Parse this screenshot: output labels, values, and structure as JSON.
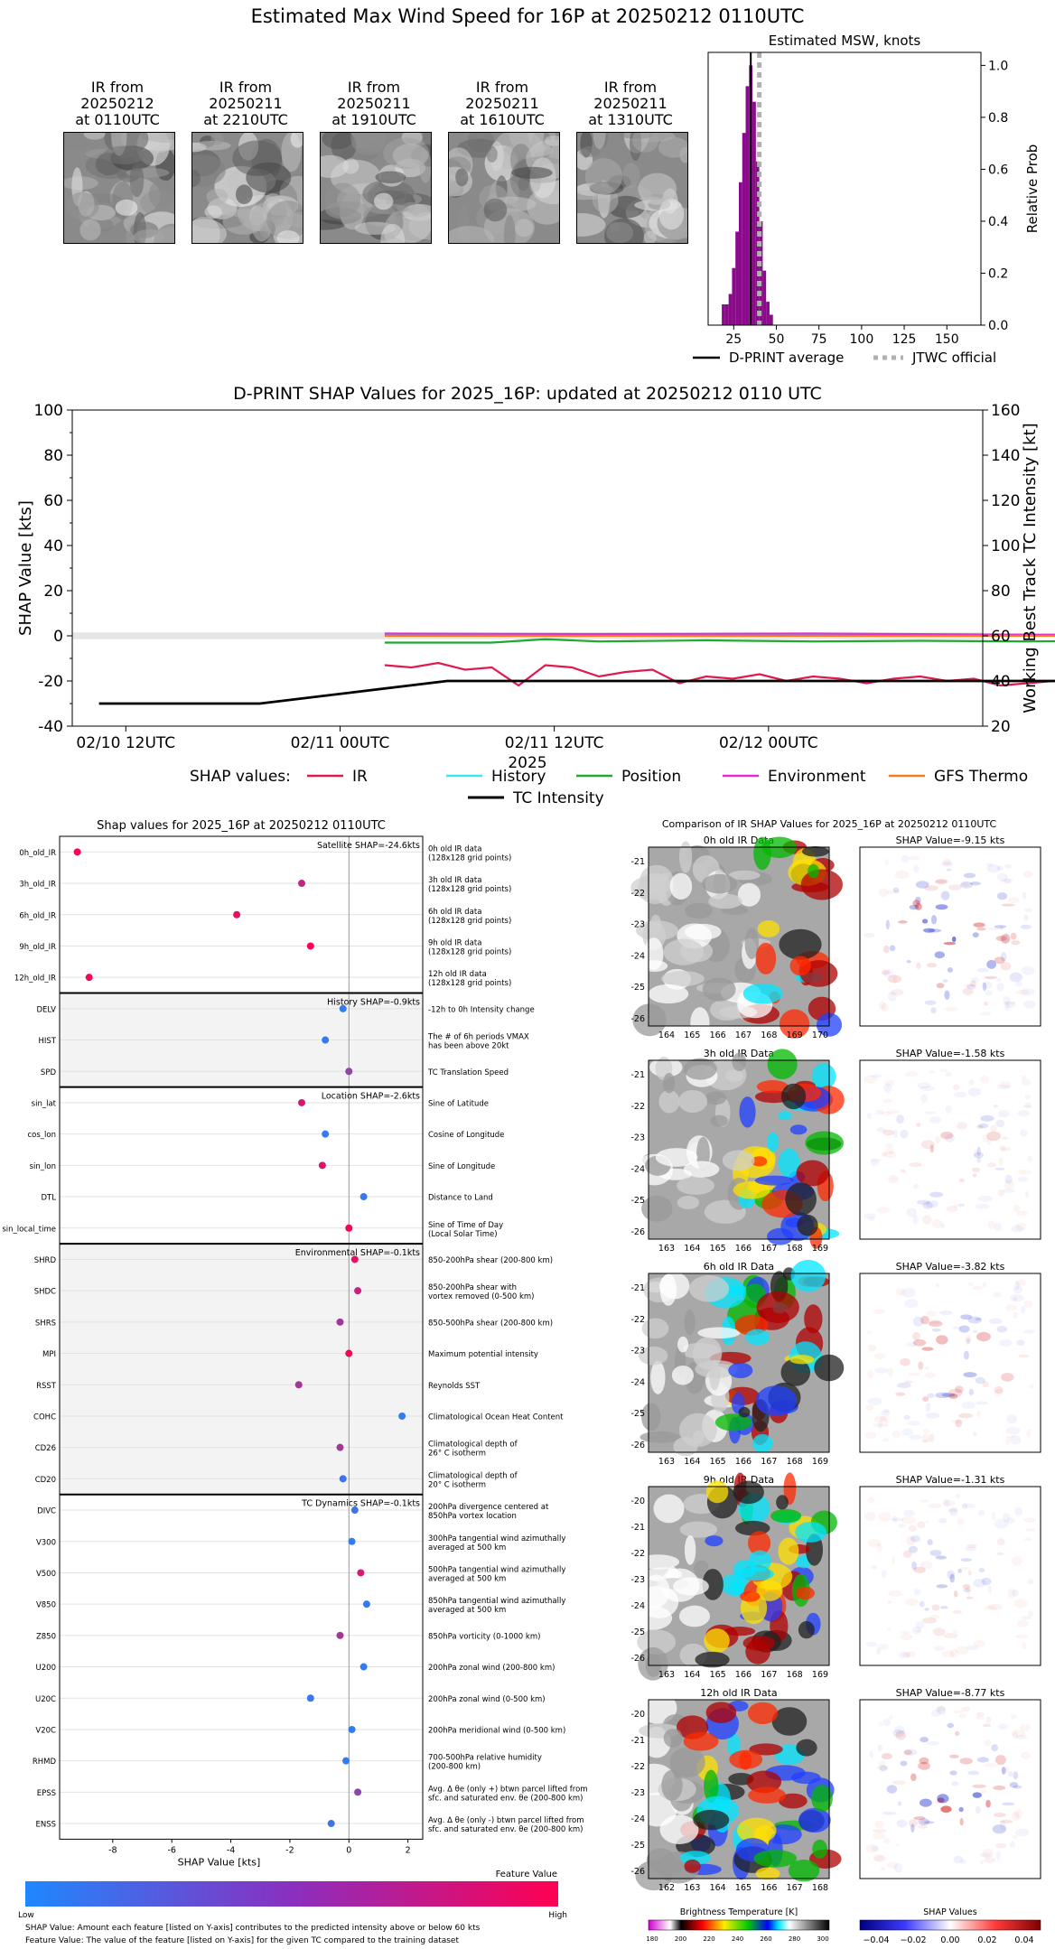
{
  "title": "Estimated Max Wind Speed for 16P at 20250212 0110UTC",
  "ir_thumbnails": [
    {
      "line1": "IR from",
      "line2": "20250212",
      "line3": "at 0110UTC"
    },
    {
      "line1": "IR from",
      "line2": "20250211",
      "line3": "at 2210UTC"
    },
    {
      "line1": "IR from",
      "line2": "20250211",
      "line3": "at 1910UTC"
    },
    {
      "line1": "IR from",
      "line2": "20250211",
      "line3": "at 1610UTC"
    },
    {
      "line1": "IR from",
      "line2": "20250211",
      "line3": "at 1310UTC"
    }
  ],
  "msw": {
    "title": "Estimated MSW, knots",
    "ylabel": "Relative Prob",
    "x_ticks": [
      "25",
      "50",
      "75",
      "100",
      "125",
      "150"
    ],
    "y_ticks": [
      "0.0",
      "0.2",
      "0.4",
      "0.6",
      "0.8",
      "1.0"
    ],
    "legend": [
      "D-PRINT average",
      "JTWC official"
    ]
  },
  "shap_ts": {
    "title": "D-PRINT SHAP Values for 2025_16P: updated at 20250212 0110 UTC",
    "ylabel_left": "SHAP Value [kts]",
    "ylabel_right": "Working Best Track TC Intensity [kt]",
    "xlabel": "2025",
    "left_ticks": [
      "100",
      "80",
      "60",
      "40",
      "20",
      "0",
      "-20",
      "-40"
    ],
    "right_ticks": [
      "160",
      "140",
      "120",
      "100",
      "80",
      "60",
      "40",
      "20"
    ],
    "x_ticks": [
      "02/10 12UTC",
      "02/11 00UTC",
      "02/11 12UTC",
      "02/12 00UTC"
    ],
    "legend_title": "SHAP values:",
    "legend": [
      "IR",
      "History",
      "Position",
      "Environment",
      "GFS Thermo",
      "TC Intensity"
    ]
  },
  "shap_summary": {
    "title": "Shap values for 2025_16P at 20250212 0110UTC",
    "xlabel": "SHAP Value [kts]",
    "x_ticks": [
      "-8",
      "-6",
      "-4",
      "-2",
      "0",
      "2"
    ],
    "group_labels": [
      "Satellite SHAP=-24.6kts",
      "History SHAP=-0.9kts",
      "Location SHAP=-2.6kts",
      "Environmental SHAP=-0.1kts",
      "TC Dynamics SHAP=-0.1kts"
    ],
    "colorbar_label": "Feature Value",
    "colorbar_low": "Low",
    "colorbar_high": "High",
    "footnote1": "SHAP Value: Amount each feature [listed on Y-axis] contributes to the predicted intensity above or below 60 kts",
    "footnote2": "Feature Value: The value of the feature [listed on Y-axis] for the given TC compared to the training dataset"
  },
  "ir_compare": {
    "title": "Comparison of IR SHAP Values for 2025_16P at 20250212 0110UTC",
    "panels": [
      {
        "ir_title": "0h old IR Data",
        "shap_title": "SHAP Value=-9.15 kts"
      },
      {
        "ir_title": "3h old IR Data",
        "shap_title": "SHAP Value=-1.58 kts"
      },
      {
        "ir_title": "6h old IR Data",
        "shap_title": "SHAP Value=-3.82 kts"
      },
      {
        "ir_title": "9h old IR Data",
        "shap_title": "SHAP Value=-1.31 kts"
      },
      {
        "ir_title": "12h old IR Data",
        "shap_title": "SHAP Value=-8.77 kts"
      }
    ],
    "bt_label": "Brightness Temperature [K]",
    "bt_ticks": [
      "180",
      "200",
      "220",
      "240",
      "260",
      "280",
      "300"
    ],
    "shap_cb_label": "SHAP Values",
    "shap_cb_ticks": [
      "−0.04",
      "−0.02",
      "0.00",
      "0.02",
      "0.04"
    ]
  },
  "colors": {
    "ir": "#e0194f",
    "history": "#3ee6e6",
    "position": "#1fa830",
    "environment": "#e32ad9",
    "gfs": "#f07c1a",
    "intensity": "#000000",
    "jtwc": "#b0b0b0",
    "histogram": "#8b0a8b"
  },
  "chart_data": [
    {
      "type": "bar",
      "title": "Estimated MSW, knots",
      "xlabel": "",
      "ylabel": "Relative Prob",
      "xlim": [
        10,
        170
      ],
      "ylim": [
        0,
        1.05
      ],
      "x": [
        19,
        21,
        23,
        25,
        27,
        29,
        31,
        33,
        35,
        37,
        39,
        41,
        43,
        45,
        47
      ],
      "values": [
        0.08,
        0.08,
        0.12,
        0.22,
        0.36,
        0.55,
        0.74,
        0.92,
        1.0,
        0.86,
        0.63,
        0.4,
        0.21,
        0.09,
        0.04
      ],
      "dprint_average": 35,
      "jtwc_official": 40
    },
    {
      "type": "line",
      "title": "D-PRINT SHAP Values for 2025_16P: updated at 20250212 0110 UTC",
      "x_range": [
        "02/10 12UTC",
        "02/12 02UTC"
      ],
      "ylim_left": [
        -40,
        100
      ],
      "ylim_right": [
        20,
        160
      ],
      "series": [
        {
          "name": "IR",
          "x_hours": [
            0,
            1.5,
            3,
            4.5,
            6,
            7.5,
            9,
            10.5,
            12,
            13.5,
            15,
            16.5,
            18,
            19.5,
            21,
            22.5,
            24,
            25.5,
            27,
            28.5,
            30,
            31.5,
            33,
            34.5,
            36,
            37.5,
            39,
            40.5,
            42,
            43.5,
            45,
            46.5
          ],
          "values": [
            -13,
            -14,
            -12,
            -15,
            -14,
            -22,
            -13,
            -14,
            -18,
            -16,
            -15,
            -21,
            -18,
            -19,
            -17,
            -20,
            -18,
            -19,
            -21,
            -19,
            -18,
            -20,
            -19,
            -22,
            -21,
            -20,
            -19,
            -21,
            -22,
            -21,
            -27,
            -24
          ]
        },
        {
          "name": "History",
          "x_hours": [
            0,
            46.5
          ],
          "values": [
            0.5,
            0.3
          ]
        },
        {
          "name": "Position",
          "x_hours": [
            0,
            6,
            9,
            12,
            18,
            24,
            30,
            36,
            42,
            46.5
          ],
          "values": [
            -3,
            -3,
            -1.5,
            -2.5,
            -2,
            -2.5,
            -2.2,
            -2.5,
            -2,
            -2.5
          ]
        },
        {
          "name": "Environment",
          "x_hours": [
            0,
            12,
            24,
            36,
            42,
            44,
            46.5
          ],
          "values": [
            1,
            0.8,
            1,
            0.5,
            0.5,
            2,
            1
          ]
        },
        {
          "name": "GFS Thermo",
          "x_hours": [
            0,
            46.5
          ],
          "values": [
            0,
            0
          ]
        },
        {
          "name": "TC Intensity",
          "x_label_hours": [
            -24,
            -15,
            -4.5,
            46.5
          ],
          "values": [
            30,
            30,
            40,
            40
          ]
        }
      ]
    },
    {
      "type": "scatter",
      "title": "Shap values for 2025_16P at 20250212 0110UTC",
      "xlabel": "SHAP Value [kts]",
      "xlim": [
        -9.8,
        2.5
      ],
      "features": [
        {
          "name": "0h_old_IR",
          "desc1": "0h old IR data",
          "desc2": "(128x128 grid points)",
          "shap": -9.2,
          "fv": 0.98
        },
        {
          "name": "3h_old_IR",
          "desc1": "3h old IR data",
          "desc2": "(128x128 grid points)",
          "shap": -1.6,
          "fv": 0.72
        },
        {
          "name": "6h_old_IR",
          "desc1": "6h old IR data",
          "desc2": "(128x128 grid points)",
          "shap": -3.8,
          "fv": 0.9
        },
        {
          "name": "9h_old_IR",
          "desc1": "9h old IR data",
          "desc2": "(128x128 grid points)",
          "shap": -1.3,
          "fv": 0.97
        },
        {
          "name": "12h_old_IR",
          "desc1": "12h old IR data",
          "desc2": "(128x128 grid points)",
          "shap": -8.8,
          "fv": 0.95
        },
        {
          "name": "DELV",
          "desc1": "-12h to 0h Intensity change",
          "desc2": "",
          "shap": -0.2,
          "fv": 0.08
        },
        {
          "name": "HIST",
          "desc1": "The # of 6h periods VMAX",
          "desc2": "has been above 20kt",
          "shap": -0.8,
          "fv": 0.12
        },
        {
          "name": "SPD",
          "desc1": "TC Translation Speed",
          "desc2": "",
          "shap": 0.0,
          "fv": 0.5
        },
        {
          "name": "sin_lat",
          "desc1": "Sine of Latitude",
          "desc2": "",
          "shap": -1.6,
          "fv": 0.82
        },
        {
          "name": "cos_lon",
          "desc1": "Cosine of Longitude",
          "desc2": "",
          "shap": -0.8,
          "fv": 0.1
        },
        {
          "name": "sin_lon",
          "desc1": "Sine of Longitude",
          "desc2": "",
          "shap": -0.9,
          "fv": 0.85
        },
        {
          "name": "DTL",
          "desc1": "Distance to Land",
          "desc2": "",
          "shap": 0.5,
          "fv": 0.1
        },
        {
          "name": "sin_local_time",
          "desc1": "Sine of Time of Day",
          "desc2": "(Local Solar Time)",
          "shap": 0.0,
          "fv": 0.97
        },
        {
          "name": "SHRD",
          "desc1": "850-200hPa shear (200-800 km)",
          "desc2": "",
          "shap": 0.2,
          "fv": 0.9
        },
        {
          "name": "SHDC",
          "desc1": "850-200hPa shear with",
          "desc2": "vortex removed (0-500 km)",
          "shap": 0.3,
          "fv": 0.75
        },
        {
          "name": "SHRS",
          "desc1": "850-500hPa shear (200-800 km)",
          "desc2": "",
          "shap": -0.3,
          "fv": 0.6
        },
        {
          "name": "MPI",
          "desc1": "Maximum potential intensity",
          "desc2": "",
          "shap": 0.0,
          "fv": 0.97
        },
        {
          "name": "RSST",
          "desc1": "Reynolds SST",
          "desc2": "",
          "shap": -1.7,
          "fv": 0.6
        },
        {
          "name": "COHC",
          "desc1": "Climatological Ocean Heat Content",
          "desc2": "",
          "shap": 1.8,
          "fv": 0.1
        },
        {
          "name": "CD26",
          "desc1": "Climatological depth of",
          "desc2": "26° C isotherm",
          "shap": -0.3,
          "fv": 0.6
        },
        {
          "name": "CD20",
          "desc1": "Climatological depth of",
          "desc2": "20° C isotherm",
          "shap": -0.2,
          "fv": 0.15
        },
        {
          "name": "DIVC",
          "desc1": "200hPa divergence centered at",
          "desc2": "850hPa vortex location",
          "shap": 0.2,
          "fv": 0.15
        },
        {
          "name": "V300",
          "desc1": "300hPa tangential wind azimuthally",
          "desc2": "averaged at 500 km",
          "shap": 0.1,
          "fv": 0.1
        },
        {
          "name": "V500",
          "desc1": "500hPa tangential wind azimuthally",
          "desc2": "averaged at 500 km",
          "shap": 0.4,
          "fv": 0.8
        },
        {
          "name": "V850",
          "desc1": "850hPa tangential wind azimuthally",
          "desc2": "averaged at 500 km",
          "shap": 0.6,
          "fv": 0.1
        },
        {
          "name": "Z850",
          "desc1": "850hPa vorticity (0-1000 km)",
          "desc2": "",
          "shap": -0.3,
          "fv": 0.6
        },
        {
          "name": "U200",
          "desc1": "200hPa zonal wind (200-800 km)",
          "desc2": "",
          "shap": 0.5,
          "fv": 0.1
        },
        {
          "name": "U20C",
          "desc1": "200hPa zonal wind (0-500 km)",
          "desc2": "",
          "shap": -1.3,
          "fv": 0.12
        },
        {
          "name": "V20C",
          "desc1": "200hPa meridional wind (0-500 km)",
          "desc2": "",
          "shap": 0.1,
          "fv": 0.1
        },
        {
          "name": "RHMD",
          "desc1": "700-500hPa relative humidity",
          "desc2": "(200-800 km)",
          "shap": -0.1,
          "fv": 0.1
        },
        {
          "name": "EPSS",
          "desc1": "Avg. Δ θe (only +) btwn parcel lifted from",
          "desc2": "sfc. and saturated env. θe (200-800 km)",
          "shap": 0.3,
          "fv": 0.5
        },
        {
          "name": "ENSS",
          "desc1": "Avg. Δ θe (only -) btwn parcel lifted from",
          "desc2": "sfc. and saturated env. θe (200-800 km)",
          "shap": -0.6,
          "fv": 0.15
        }
      ]
    },
    {
      "type": "heatmap",
      "title": "Comparison of IR SHAP Values for 2025_16P at 20250212 0110UTC",
      "axes": [
        {
          "x_ticks": [
            "164",
            "165",
            "166",
            "167",
            "168",
            "169",
            "170"
          ],
          "y_ticks": [
            "-21",
            "-22",
            "-23",
            "-24",
            "-25",
            "-26"
          ]
        },
        {
          "x_ticks": [
            "163",
            "164",
            "165",
            "166",
            "167",
            "168",
            "169"
          ],
          "y_ticks": [
            "-21",
            "-22",
            "-23",
            "-24",
            "-25",
            "-26"
          ]
        },
        {
          "x_ticks": [
            "163",
            "164",
            "165",
            "166",
            "167",
            "168",
            "169"
          ],
          "y_ticks": [
            "-21",
            "-22",
            "-23",
            "-24",
            "-25",
            "-26"
          ]
        },
        {
          "x_ticks": [
            "163",
            "164",
            "165",
            "166",
            "167",
            "168",
            "169"
          ],
          "y_ticks": [
            "-20",
            "-21",
            "-22",
            "-23",
            "-24",
            "-25",
            "-26"
          ]
        },
        {
          "x_ticks": [
            "162",
            "163",
            "164",
            "165",
            "166",
            "167",
            "168"
          ],
          "y_ticks": [
            "-20",
            "-21",
            "-22",
            "-23",
            "-24",
            "-25",
            "-26"
          ]
        }
      ]
    }
  ]
}
